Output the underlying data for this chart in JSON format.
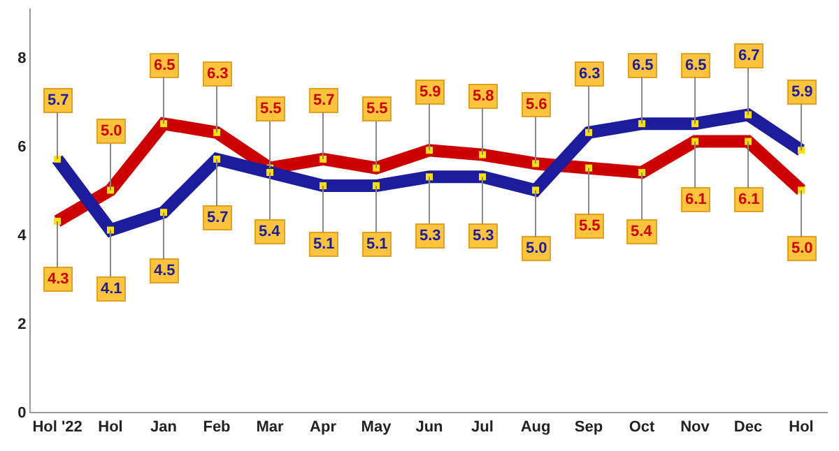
{
  "chart_data": {
    "type": "line",
    "categories": [
      "Hol '22",
      "Hol",
      "Jan",
      "Feb",
      "Mar",
      "Apr",
      "May",
      "Jun",
      "Jul",
      "Aug",
      "Sep",
      "Oct",
      "Nov",
      "Dec",
      "Hol"
    ],
    "series": [
      {
        "color": "#cc0000",
        "values": [
          4.3,
          5.0,
          6.5,
          6.3,
          5.5,
          5.7,
          5.5,
          5.9,
          5.8,
          5.6,
          5.5,
          5.4,
          6.1,
          6.1,
          5.0
        ],
        "value_labels": [
          "4.3",
          "5.0",
          "6.5",
          "6.3",
          "5.5",
          "5.7",
          "5.5",
          "5.9",
          "5.8",
          "5.6",
          "5.5",
          "5.4",
          "6.1",
          "6.1",
          "5.0"
        ]
      },
      {
        "color": "#1c1c9c",
        "values": [
          5.7,
          4.1,
          4.5,
          5.7,
          5.4,
          5.1,
          5.1,
          5.3,
          5.3,
          5.0,
          6.3,
          6.5,
          6.5,
          6.7,
          5.9
        ],
        "value_labels": [
          "5.7",
          "4.1",
          "4.5",
          "5.7",
          "5.4",
          "5.1",
          "5.1",
          "5.3",
          "5.3",
          "5.0",
          "6.3",
          "6.5",
          "6.5",
          "6.7",
          "5.9"
        ]
      }
    ],
    "ylim": [
      0,
      9.1
    ],
    "yticks": [
      0,
      2,
      4,
      6,
      8
    ],
    "marker": "square"
  }
}
